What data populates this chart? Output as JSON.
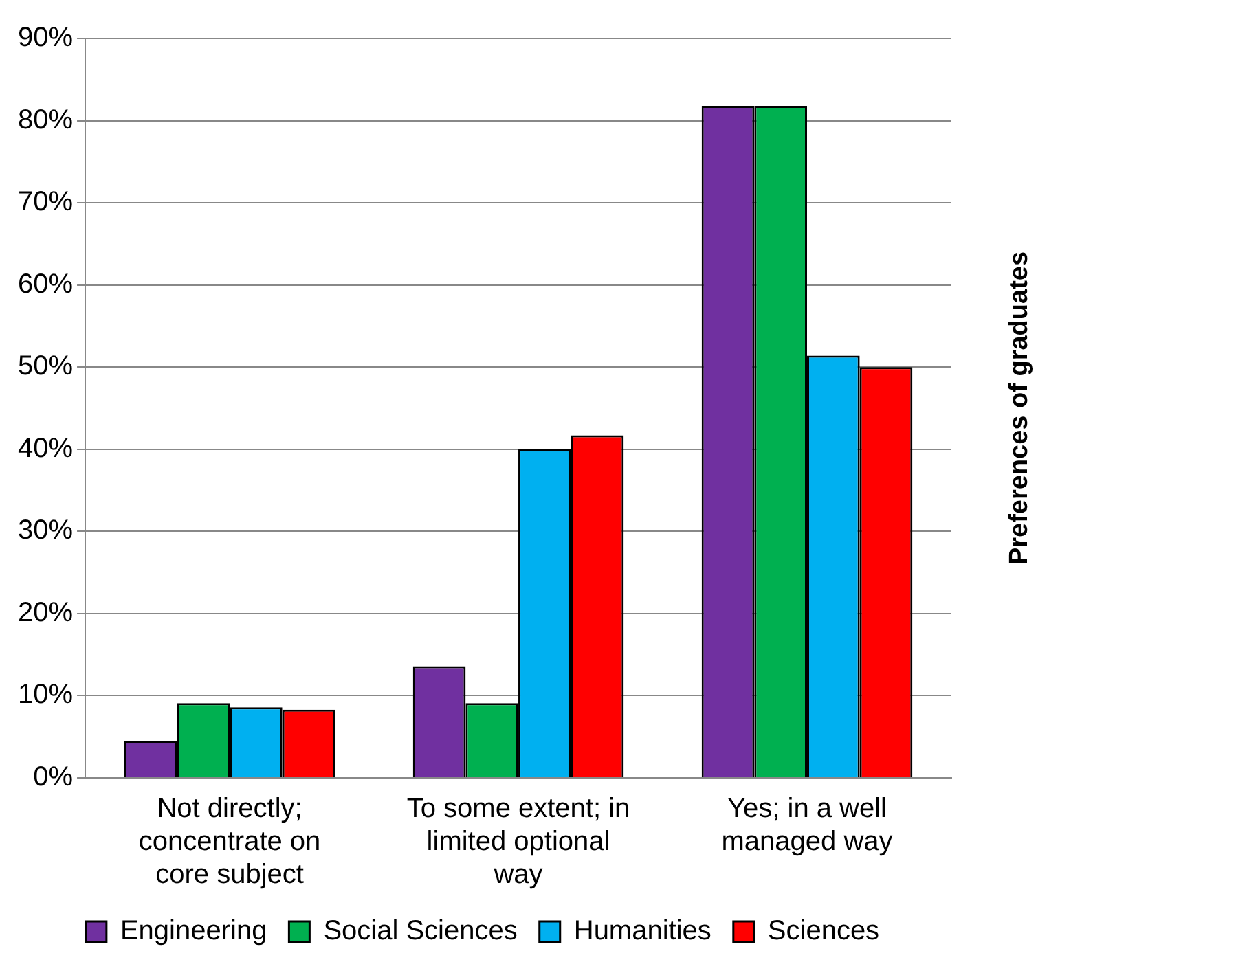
{
  "chart_data": {
    "type": "bar",
    "ylabel": "Preferences of graduates",
    "categories": [
      "Not directly; concentrate on core subject",
      "To some extent; in limited optional way",
      "Yes; in a well managed way"
    ],
    "series": [
      {
        "name": "Engineering",
        "color": "#7030a0",
        "values": [
          4.5,
          13.6,
          81.8
        ]
      },
      {
        "name": "Social Sciences",
        "color": "#00b050",
        "values": [
          9.1,
          9.1,
          81.8
        ]
      },
      {
        "name": "Humanities",
        "color": "#00b0f0",
        "values": [
          8.6,
          40,
          51.4
        ]
      },
      {
        "name": "Sciences",
        "color": "#ff0000",
        "values": [
          8.3,
          41.7,
          50
        ]
      }
    ],
    "ylim": [
      0,
      90
    ],
    "yticks": [
      {
        "value": 0,
        "label": "0%"
      },
      {
        "value": 10,
        "label": "10%"
      },
      {
        "value": 20,
        "label": "20%"
      },
      {
        "value": 30,
        "label": "30%"
      },
      {
        "value": 40,
        "label": "40%"
      },
      {
        "value": 50,
        "label": "50%"
      },
      {
        "value": 60,
        "label": "60%"
      },
      {
        "value": 70,
        "label": "70%"
      },
      {
        "value": 80,
        "label": "80%"
      },
      {
        "value": 90,
        "label": "90%"
      }
    ],
    "grid": "y",
    "legend": "bottom"
  }
}
